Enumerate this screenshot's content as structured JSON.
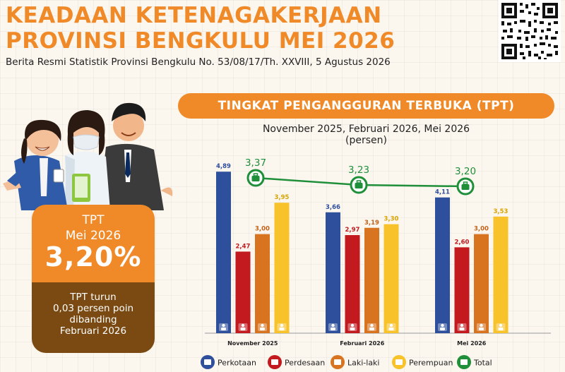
{
  "header": {
    "title_line1": "KEADAAN KETENAGAKERJAAN",
    "title_line2": "PROVINSI BENGKULU MEI 2026",
    "subtitle": "Berita Resmi Statistik Provinsi Bengkulu No. 53/08/17/Th. XXVIII, 5 Agustus 2026"
  },
  "summary_card": {
    "label": "TPT",
    "period": "Mei 2026",
    "value": "3,20%",
    "note_line1": "TPT turun",
    "note_line2": "0,03 persen poin",
    "note_line3": "dibanding",
    "note_line4": "Februari 2026"
  },
  "chart_banner": "TINGKAT PENGANGGURAN TERBUKA (TPT)",
  "chart_data": {
    "type": "bar",
    "subtitle": "November 2025, Februari 2026, Mei 2026",
    "unit": "(persen)",
    "categories": [
      "November 2025",
      "Februari 2026",
      "Mei 2026"
    ],
    "series": [
      {
        "name": "Perkotaan",
        "color": "#2e4f9c",
        "values": [
          4.89,
          3.66,
          4.11
        ],
        "labels": [
          "4,89",
          "3,66",
          "4,11"
        ],
        "icon": "city-icon"
      },
      {
        "name": "Perdesaan",
        "color": "#c21a1f",
        "values": [
          2.47,
          2.97,
          2.6
        ],
        "labels": [
          "2,47",
          "2,97",
          "2,60"
        ],
        "icon": "house-icon"
      },
      {
        "name": "Laki-laki",
        "color": "#d8741f",
        "values": [
          3.0,
          3.19,
          3.0
        ],
        "labels": [
          "3,00",
          "3,19",
          "3,00"
        ],
        "icon": "man-icon"
      },
      {
        "name": "Perempuan",
        "color": "#f7c22a",
        "values": [
          3.95,
          3.3,
          3.53
        ],
        "labels": [
          "3,95",
          "3,30",
          "3,53"
        ],
        "icon": "woman-icon"
      }
    ],
    "total": {
      "name": "Total",
      "color": "#1f8f3a",
      "values": [
        3.37,
        3.23,
        3.2
      ],
      "labels": [
        "3,37",
        "3,23",
        "3,20"
      ],
      "icon": "briefcase-icon"
    },
    "bar_label_colors": [
      "#2e4f9c",
      "#c21a1f",
      "#c0631a",
      "#d9a400"
    ],
    "ylim": [
      0,
      5.6
    ],
    "grid": false
  }
}
